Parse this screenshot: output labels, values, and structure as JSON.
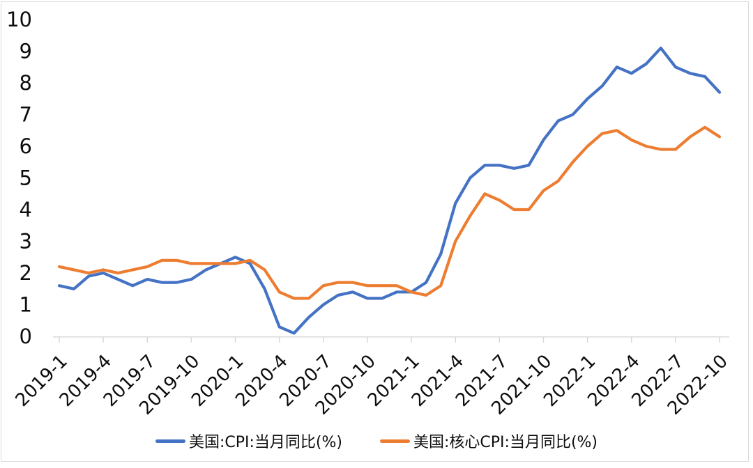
{
  "chart_data": {
    "type": "line",
    "title": "",
    "xlabel": "",
    "ylabel": "",
    "ylim": [
      0,
      10
    ],
    "y_ticks": [
      0,
      1,
      2,
      3,
      4,
      5,
      6,
      7,
      8,
      9,
      10
    ],
    "grid": false,
    "legend_position": "bottom",
    "x": [
      "2019-1",
      "2019-2",
      "2019-3",
      "2019-4",
      "2019-5",
      "2019-6",
      "2019-7",
      "2019-8",
      "2019-9",
      "2019-10",
      "2019-11",
      "2019-12",
      "2020-1",
      "2020-2",
      "2020-3",
      "2020-4",
      "2020-5",
      "2020-6",
      "2020-7",
      "2020-8",
      "2020-9",
      "2020-10",
      "2020-11",
      "2020-12",
      "2021-1",
      "2021-2",
      "2021-3",
      "2021-4",
      "2021-5",
      "2021-6",
      "2021-7",
      "2021-8",
      "2021-9",
      "2021-10",
      "2021-11",
      "2021-12",
      "2022-1",
      "2022-2",
      "2022-3",
      "2022-4",
      "2022-5",
      "2022-6",
      "2022-7",
      "2022-8",
      "2022-9",
      "2022-10"
    ],
    "x_tick_labels": [
      "2019-1",
      "2019-4",
      "2019-7",
      "2019-10",
      "2020-1",
      "2020-4",
      "2020-7",
      "2020-10",
      "2021-1",
      "2021-4",
      "2021-7",
      "2021-10",
      "2022-1",
      "2022-4",
      "2022-7",
      "2022-10"
    ],
    "series": [
      {
        "name": "美国:CPI:当月同比(%)",
        "color": "#4472C4",
        "values": [
          1.6,
          1.5,
          1.9,
          2.0,
          1.8,
          1.6,
          1.8,
          1.7,
          1.7,
          1.8,
          2.1,
          2.3,
          2.5,
          2.3,
          1.5,
          0.3,
          0.1,
          0.6,
          1.0,
          1.3,
          1.4,
          1.2,
          1.2,
          1.4,
          1.4,
          1.7,
          2.6,
          4.2,
          5.0,
          5.4,
          5.4,
          5.3,
          5.4,
          6.2,
          6.8,
          7.0,
          7.5,
          7.9,
          8.5,
          8.3,
          8.6,
          9.1,
          8.5,
          8.3,
          8.2,
          7.7
        ]
      },
      {
        "name": "美国:核心CPI:当月同比(%)",
        "color": "#ED7D31",
        "values": [
          2.2,
          2.1,
          2.0,
          2.1,
          2.0,
          2.1,
          2.2,
          2.4,
          2.4,
          2.3,
          2.3,
          2.3,
          2.3,
          2.4,
          2.1,
          1.4,
          1.2,
          1.2,
          1.6,
          1.7,
          1.7,
          1.6,
          1.6,
          1.6,
          1.4,
          1.3,
          1.6,
          3.0,
          3.8,
          4.5,
          4.3,
          4.0,
          4.0,
          4.6,
          4.9,
          5.5,
          6.0,
          6.4,
          6.5,
          6.2,
          6.0,
          5.9,
          5.9,
          6.3,
          6.6,
          6.3
        ]
      }
    ]
  },
  "colors": {
    "axis": "#d9d9d9",
    "label_text": "#0d0d0d"
  }
}
